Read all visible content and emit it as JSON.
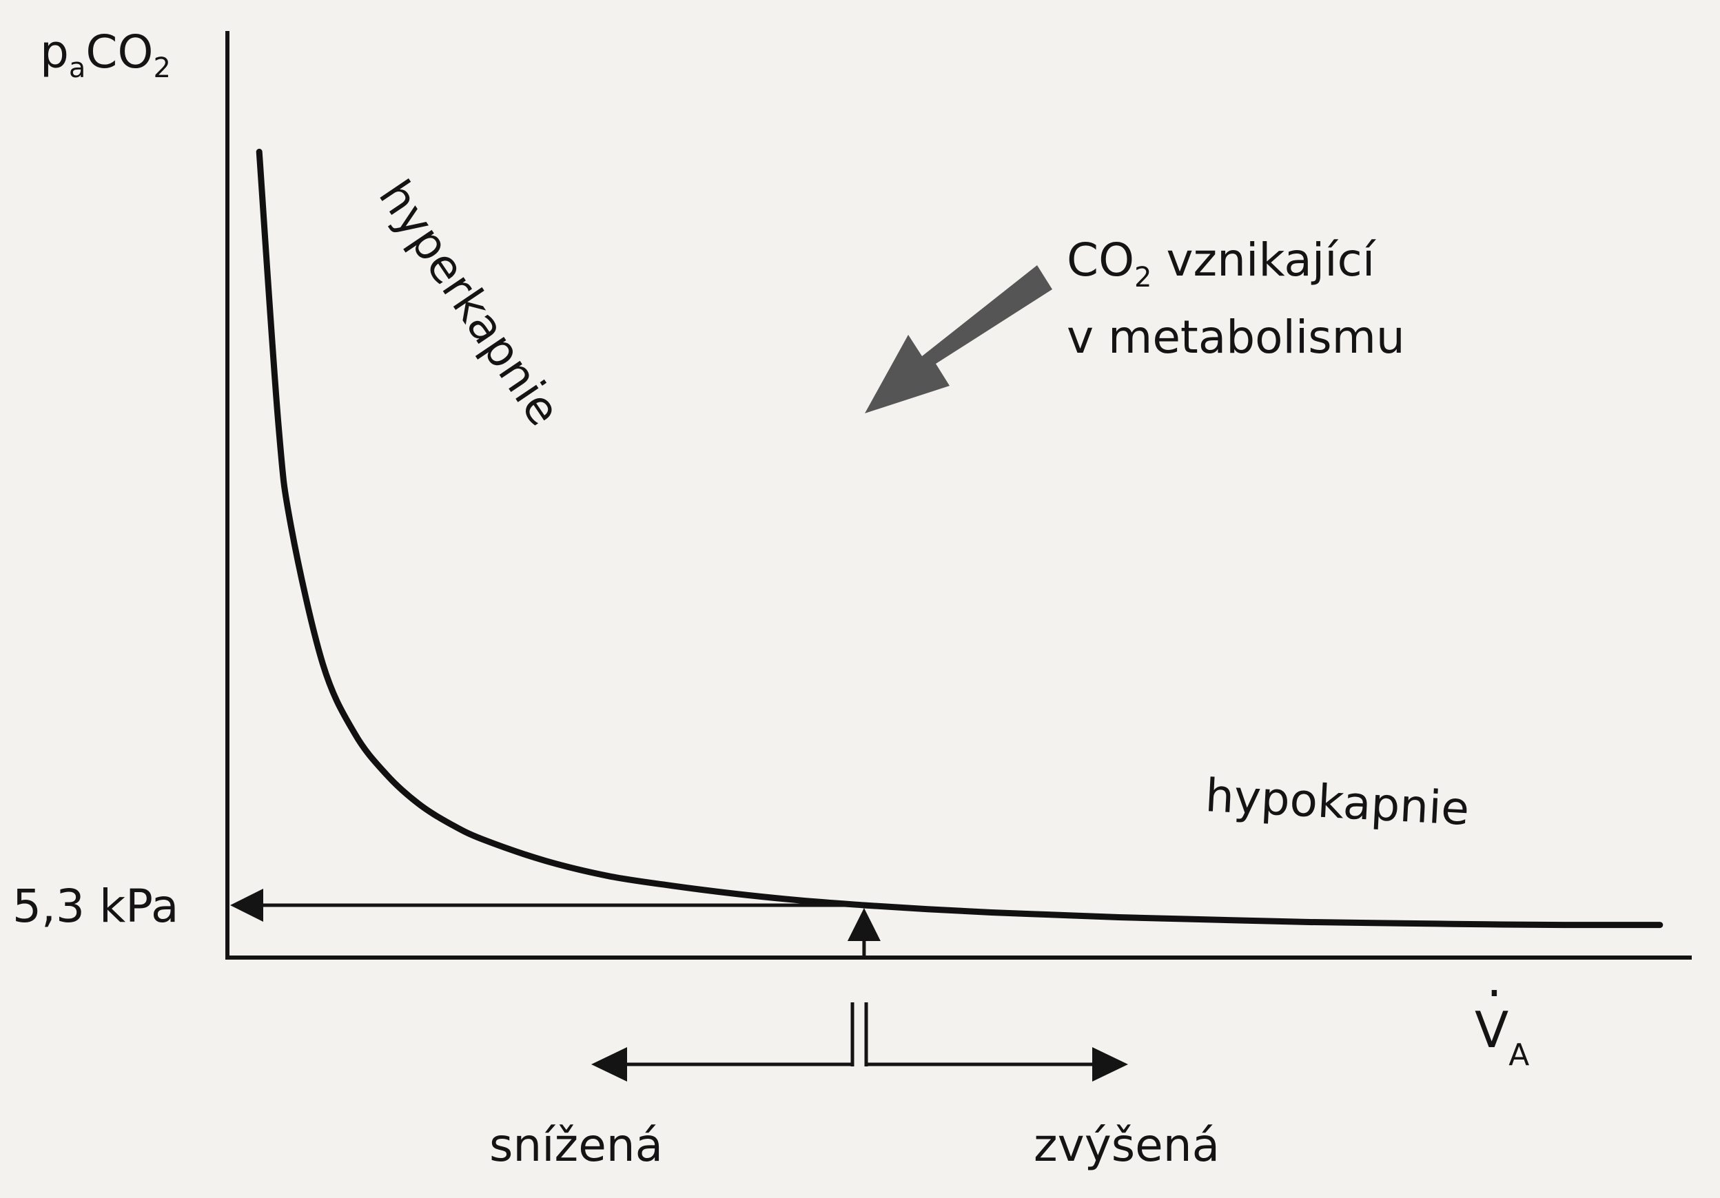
{
  "chart_data": {
    "type": "line",
    "title": "",
    "ylabel": {
      "main": "p",
      "sub1": "a",
      "mid": "CO",
      "sub2": "2"
    },
    "xlabel": {
      "main": "V",
      "sub": "A",
      "dot": "."
    },
    "curve": {
      "x": [
        0.05,
        0.08,
        0.1,
        0.15,
        0.2,
        0.25,
        0.3,
        0.35,
        0.4,
        0.5,
        0.6,
        0.7,
        0.8,
        0.9,
        1.0,
        1.1,
        1.2,
        1.3,
        1.4,
        1.5,
        1.6,
        1.7,
        1.8,
        1.9,
        2.0,
        2.1,
        2.2,
        2.25
      ],
      "y": [
        100,
        66.3,
        53.5,
        36.4,
        27.8,
        22.7,
        19.1,
        16.6,
        14.7,
        12.0,
        10.1,
        8.9,
        7.9,
        7.1,
        6.5,
        6.0,
        5.6,
        5.3,
        5.0,
        4.8,
        4.6,
        4.4,
        4.3,
        4.2,
        4.1,
        4.05,
        4.05,
        4.05
      ]
    },
    "reference": {
      "x": 1.0,
      "y": 6.5,
      "label": "5,3 kPa"
    },
    "annotations": {
      "hyperkapnie": "hyperkapnie",
      "hypokapnie": "hypokapnie",
      "co2_line1_main": "CO",
      "co2_line1_sub": "2",
      "co2_line1_rest": " vznikající",
      "co2_line2": "v metabolismu"
    },
    "direction_labels": {
      "left": "snížená",
      "right": "zvýšená"
    },
    "xlim": [
      0,
      2.3
    ],
    "ylim": [
      0,
      115
    ],
    "grid": false,
    "legend": "none"
  }
}
